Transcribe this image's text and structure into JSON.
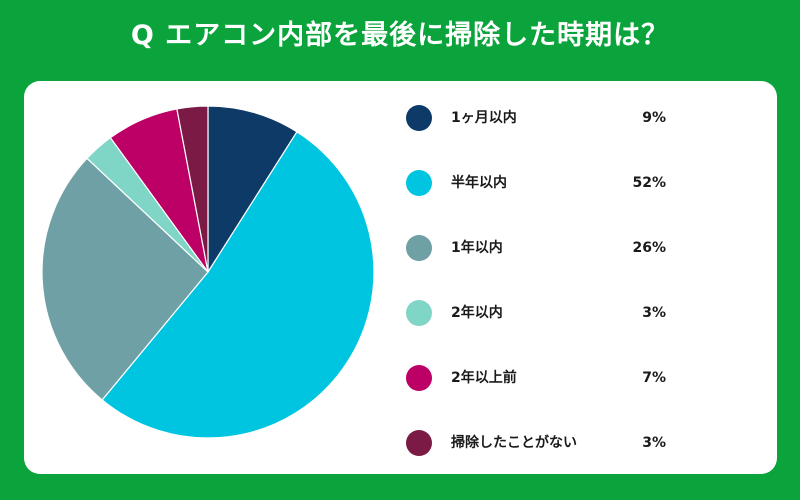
{
  "header": {
    "title": "Q エアコン内部を最後に掃除した時期は？"
  },
  "chart_data": {
    "type": "pie",
    "categories": [
      "1ヶ月以内",
      "半年以内",
      "1年以内",
      "2年以内",
      "2年以上前",
      "掃除したことがない"
    ],
    "values": [
      9,
      52,
      26,
      3,
      7,
      3
    ],
    "value_labels": [
      "9%",
      "52%",
      "26%",
      "3%",
      "7%",
      "3%"
    ],
    "colors": [
      "#0d3a66",
      "#00c5e0",
      "#6ea0a5",
      "#7fd6c6",
      "#bd0066",
      "#7a1a45"
    ],
    "start": "12 o'clock",
    "direction": "clockwise",
    "legend_position": "right"
  }
}
